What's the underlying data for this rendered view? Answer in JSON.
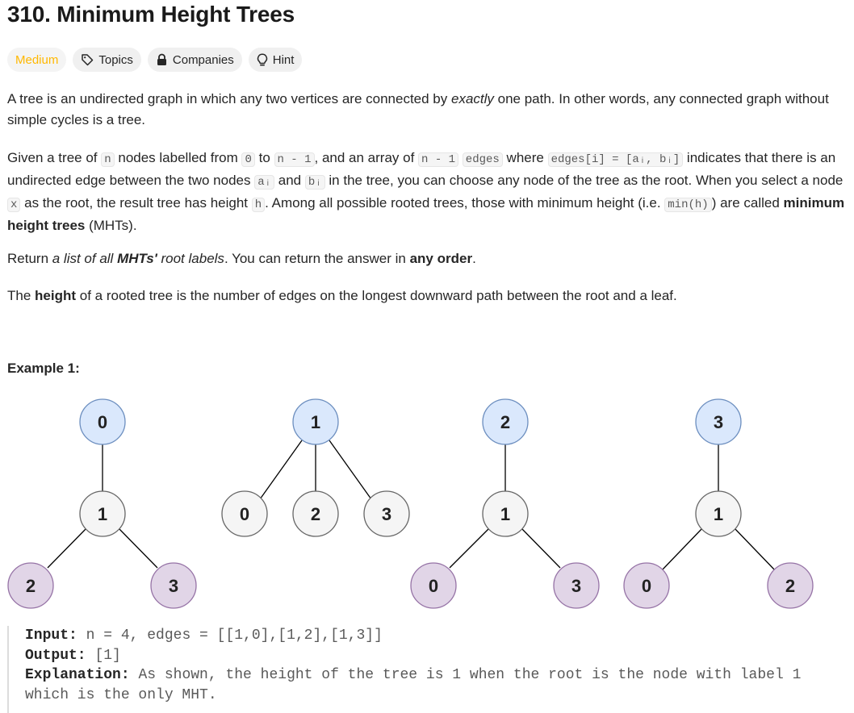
{
  "problem": {
    "title": "310. Minimum Height Trees",
    "difficulty": "Medium",
    "tags": {
      "topics": "Topics",
      "companies": "Companies",
      "hint": "Hint"
    }
  },
  "description": {
    "p1": {
      "a": "A tree is an undirected graph in which any two vertices are connected by ",
      "em": "exactly",
      "b": " one path. In other words, any connected graph without simple cycles is a tree."
    },
    "p2": {
      "t1": "Given a tree of ",
      "c1": "n",
      "t2": " nodes labelled from ",
      "c2": "0",
      "t3": " to ",
      "c3": "n - 1",
      "t4": ", and an array of ",
      "c4": "n - 1",
      "t5": " ",
      "c5": "edges",
      "t6": " where ",
      "c6": "edges[i] = [aᵢ, bᵢ]",
      "t7": " indicates that there is an undirected edge between the two nodes ",
      "c7": "aᵢ",
      "t8": " and ",
      "c8": "bᵢ",
      "t9": " in the tree, you can choose any node of the tree as the root. When you select a node ",
      "c9": "x",
      "t10": " as the root, the result tree has height ",
      "c10": "h",
      "t11": ". Among all possible rooted trees, those with minimum height (i.e. ",
      "c11": "min(h)",
      "t12": ")  are called ",
      "strong": "minimum height trees",
      "t13": " (MHTs)."
    },
    "p3": {
      "t1": "Return ",
      "em1": "a list of all ",
      "em_strong": "MHTs'",
      "em2": " root labels",
      "t2": ". You can return the answer in ",
      "strong": "any order",
      "t3": "."
    },
    "p4": {
      "t1": "The ",
      "strong": "height",
      "t2": " of a rooted tree is the number of edges on the longest downward path between the root and a leaf."
    }
  },
  "example": {
    "title": "Example 1:",
    "input_label": "Input:",
    "input_value": "n = 4, edges = [[1,0],[1,2],[1,3]]",
    "output_label": "Output:",
    "output_value": "[1]",
    "explanation_label": "Explanation:",
    "explanation_value": "As shown, the height of the tree is 1 when the root is the node with label 1 which is the only MHT."
  },
  "diagram": {
    "colors": {
      "root_fill": "#dae8fc",
      "root_stroke": "#6c8ebf",
      "mid_fill": "#f5f5f5",
      "mid_stroke": "#666666",
      "leaf_fill": "#e1d5e7",
      "leaf_stroke": "#9673a6"
    },
    "trees": [
      {
        "root": "0",
        "mid": "1",
        "leaves": [
          "2",
          "3"
        ]
      },
      {
        "root": "1",
        "leaves": [
          "0",
          "2",
          "3"
        ]
      },
      {
        "root": "2",
        "mid": "1",
        "leaves": [
          "0",
          "3"
        ]
      },
      {
        "root": "3",
        "mid": "1",
        "leaves": [
          "0",
          "2"
        ]
      }
    ]
  }
}
